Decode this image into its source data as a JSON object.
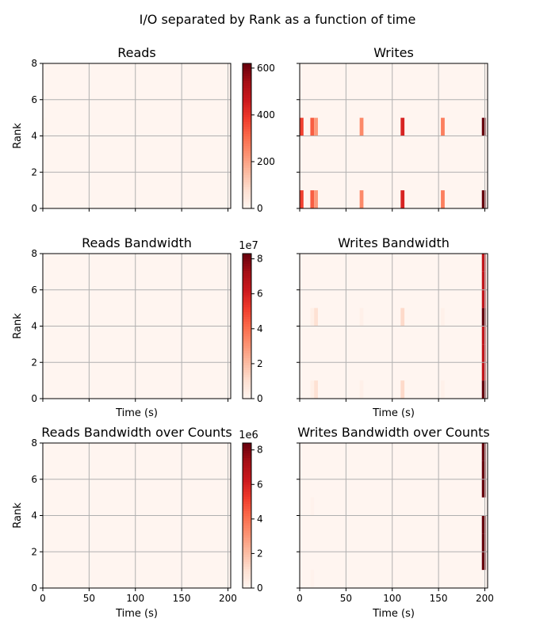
{
  "figure": {
    "suptitle": "I/O separated by Rank as a function of time"
  },
  "chart_data": [
    {
      "type": "heatmap",
      "title": "Reads",
      "xlabel": "",
      "ylabel": "Rank",
      "xlim": [
        0,
        203
      ],
      "ylim": [
        0,
        8
      ],
      "xticks": [
        0,
        50,
        100,
        150,
        200
      ],
      "yticks": [
        0,
        2,
        4,
        6,
        8
      ],
      "show_xticklabels": false,
      "grid": true,
      "colormap": "Reds",
      "colorbar": {
        "range": [
          0,
          620
        ],
        "ticks": [
          0,
          200,
          400,
          600
        ],
        "tick_labels": [
          "0",
          "200",
          "400",
          "600"
        ],
        "exponent_label": ""
      },
      "cells": [
        {
          "t0": 0,
          "t1": 5,
          "r0": 0,
          "r1": 1,
          "value": 4
        },
        {
          "t0": 0,
          "t1": 5,
          "r0": 4,
          "r1": 5,
          "value": 4
        }
      ]
    },
    {
      "type": "heatmap",
      "title": "Writes",
      "xlabel": "",
      "ylabel": "",
      "xlim": [
        0,
        203
      ],
      "ylim": [
        0,
        8
      ],
      "xticks": [
        0,
        50,
        100,
        150,
        200
      ],
      "yticks": [
        0,
        2,
        4,
        6,
        8
      ],
      "show_xticklabels": false,
      "show_yticklabels": false,
      "grid": true,
      "colormap": "Reds",
      "colorbar": {
        "range": [
          0,
          620
        ]
      },
      "cells": [
        {
          "t0": 0,
          "t1": 5,
          "r0": 0,
          "r1": 1,
          "value": 380
        },
        {
          "t0": 0,
          "t1": 5,
          "r0": 4,
          "r1": 5,
          "value": 380
        },
        {
          "t0": 14,
          "t1": 19,
          "r0": 0,
          "r1": 1,
          "value": 330
        },
        {
          "t0": 14,
          "t1": 19,
          "r0": 4,
          "r1": 5,
          "value": 330
        },
        {
          "t0": 19,
          "t1": 24,
          "r0": 0,
          "r1": 1,
          "value": 220
        },
        {
          "t0": 19,
          "t1": 24,
          "r0": 4,
          "r1": 5,
          "value": 220
        },
        {
          "t0": 79,
          "t1": 84,
          "r0": 0,
          "r1": 1,
          "value": 250
        },
        {
          "t0": 79,
          "t1": 84,
          "r0": 4,
          "r1": 5,
          "value": 250
        },
        {
          "t0": 133,
          "t1": 138,
          "r0": 0,
          "r1": 1,
          "value": 440
        },
        {
          "t0": 133,
          "t1": 138,
          "r0": 4,
          "r1": 5,
          "value": 440
        },
        {
          "t0": 186,
          "t1": 191,
          "r0": 0,
          "r1": 1,
          "value": 270
        },
        {
          "t0": 186,
          "t1": 191,
          "r0": 4,
          "r1": 5,
          "value": 270
        },
        {
          "t0": 240,
          "t1": 245,
          "r0": 0,
          "r1": 1,
          "value": 620
        },
        {
          "t0": 240,
          "t1": 245,
          "r0": 4,
          "r1": 5,
          "value": 620
        }
      ]
    },
    {
      "type": "heatmap",
      "title": "Reads Bandwidth",
      "xlabel": "Time (s)",
      "ylabel": "Rank",
      "xlim": [
        0,
        203
      ],
      "ylim": [
        0,
        8
      ],
      "xticks": [
        0,
        50,
        100,
        150,
        200
      ],
      "yticks": [
        0,
        2,
        4,
        6,
        8
      ],
      "show_xticklabels": false,
      "grid": true,
      "colormap": "Reds",
      "colorbar": {
        "range": [
          0,
          8.3
        ],
        "ticks": [
          0,
          2,
          4,
          6,
          8
        ],
        "tick_labels": [
          "0",
          "2",
          "4",
          "6",
          "8"
        ],
        "exponent_label": "1e7"
      },
      "cells": []
    },
    {
      "type": "heatmap",
      "title": "Writes Bandwidth",
      "xlabel": "Time (s)",
      "ylabel": "",
      "xlim": [
        0,
        203
      ],
      "ylim": [
        0,
        8
      ],
      "xticks": [
        0,
        50,
        100,
        150,
        200
      ],
      "yticks": [
        0,
        2,
        4,
        6,
        8
      ],
      "show_xticklabels": false,
      "show_yticklabels": false,
      "grid": true,
      "colormap": "Reds",
      "colorbar": {
        "range": [
          0,
          8.3
        ]
      },
      "cells": [
        {
          "t0": 14,
          "t1": 19,
          "r0": 0,
          "r1": 1,
          "value": 0.3
        },
        {
          "t0": 14,
          "t1": 19,
          "r0": 4,
          "r1": 5,
          "value": 0.3
        },
        {
          "t0": 19,
          "t1": 24,
          "r0": 0,
          "r1": 1,
          "value": 1.0
        },
        {
          "t0": 19,
          "t1": 24,
          "r0": 4,
          "r1": 5,
          "value": 1.0
        },
        {
          "t0": 79,
          "t1": 84,
          "r0": 0,
          "r1": 1,
          "value": 0.25
        },
        {
          "t0": 79,
          "t1": 84,
          "r0": 4,
          "r1": 5,
          "value": 0.25
        },
        {
          "t0": 133,
          "t1": 138,
          "r0": 0,
          "r1": 1,
          "value": 1.2
        },
        {
          "t0": 133,
          "t1": 138,
          "r0": 4,
          "r1": 5,
          "value": 1.2
        },
        {
          "t0": 186,
          "t1": 191,
          "r0": 0,
          "r1": 1,
          "value": 0.2
        },
        {
          "t0": 186,
          "t1": 191,
          "r0": 4,
          "r1": 5,
          "value": 0.2
        },
        {
          "t0": 240,
          "t1": 245,
          "r0": 0,
          "r1": 1,
          "value": 8.3
        },
        {
          "t0": 240,
          "t1": 245,
          "r0": 1,
          "r1": 2,
          "value": 6.5
        },
        {
          "t0": 240,
          "t1": 245,
          "r0": 2,
          "r1": 3,
          "value": 6.5
        },
        {
          "t0": 240,
          "t1": 245,
          "r0": 3,
          "r1": 4,
          "value": 6.5
        },
        {
          "t0": 240,
          "t1": 245,
          "r0": 4,
          "r1": 5,
          "value": 8.3
        },
        {
          "t0": 240,
          "t1": 245,
          "r0": 5,
          "r1": 6,
          "value": 6.5
        },
        {
          "t0": 240,
          "t1": 245,
          "r0": 6,
          "r1": 7,
          "value": 6.5
        },
        {
          "t0": 240,
          "t1": 245,
          "r0": 7,
          "r1": 8,
          "value": 6.5
        }
      ]
    },
    {
      "type": "heatmap",
      "title": "Reads Bandwidth over Counts",
      "xlabel": "Time (s)",
      "ylabel": "Rank",
      "xlim": [
        0,
        203
      ],
      "ylim": [
        0,
        8
      ],
      "xticks": [
        0,
        50,
        100,
        150,
        200
      ],
      "yticks": [
        0,
        2,
        4,
        6,
        8
      ],
      "xtick_labels": [
        "0",
        "50",
        "100",
        "150",
        "200"
      ],
      "grid": true,
      "colormap": "Reds",
      "colorbar": {
        "range": [
          0,
          8.4
        ],
        "ticks": [
          0,
          2,
          4,
          6,
          8
        ],
        "tick_labels": [
          "0",
          "2",
          "4",
          "6",
          "8"
        ],
        "exponent_label": "1e6"
      },
      "cells": []
    },
    {
      "type": "heatmap",
      "title": "Writes Bandwidth over Counts",
      "xlabel": "Time (s)",
      "ylabel": "",
      "xlim": [
        0,
        203
      ],
      "ylim": [
        0,
        8
      ],
      "xticks": [
        0,
        50,
        100,
        150,
        200
      ],
      "yticks": [
        0,
        2,
        4,
        6,
        8
      ],
      "xtick_labels": [
        "0",
        "50",
        "100",
        "150",
        "200"
      ],
      "show_yticklabels": false,
      "grid": true,
      "colormap": "Reds",
      "colorbar": {
        "range": [
          0,
          8.4
        ]
      },
      "cells": [
        {
          "t0": 14,
          "t1": 19,
          "r0": 0,
          "r1": 1,
          "value": 0.15
        },
        {
          "t0": 14,
          "t1": 19,
          "r0": 4,
          "r1": 5,
          "value": 0.15
        },
        {
          "t0": 240,
          "t1": 245,
          "r0": 1,
          "r1": 2,
          "value": 8.4
        },
        {
          "t0": 240,
          "t1": 245,
          "r0": 2,
          "r1": 3,
          "value": 8.4
        },
        {
          "t0": 240,
          "t1": 245,
          "r0": 3,
          "r1": 4,
          "value": 8.4
        },
        {
          "t0": 240,
          "t1": 245,
          "r0": 5,
          "r1": 6,
          "value": 8.4
        },
        {
          "t0": 240,
          "t1": 245,
          "r0": 6,
          "r1": 7,
          "value": 8.4
        },
        {
          "t0": 240,
          "t1": 245,
          "r0": 7,
          "r1": 8,
          "value": 8.4
        }
      ]
    }
  ]
}
